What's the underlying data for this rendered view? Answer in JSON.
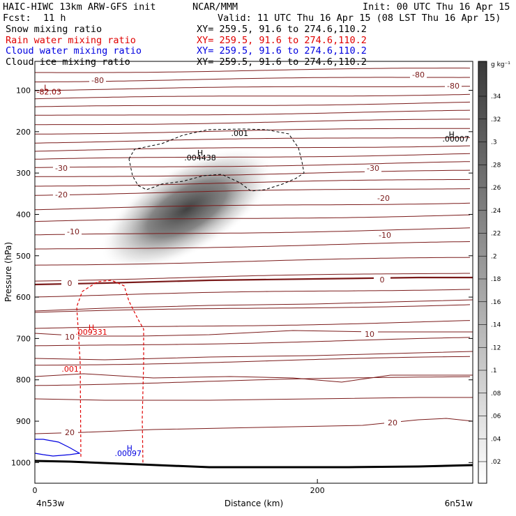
{
  "header": {
    "title_left": "HAIC-HIWC 13km ARW-GFS init",
    "title_mid": "NCAR/MMM",
    "init": "Init: 00 UTC Thu 16 Apr 15",
    "fcst_label": "Fcst:",
    "fcst_value": "11 h",
    "valid": "Valid: 11 UTC Thu 16 Apr 15 (08 LST Thu 16 Apr 15)",
    "rows": [
      {
        "name": "Snow mixing ratio",
        "xy": "XY= 259.5, 91.6 to 274.6,110.2",
        "color": "#000000"
      },
      {
        "name": "Rain water mixing ratio",
        "xy": "XY= 259.5, 91.6 to 274.6,110.2",
        "color": "#e00000"
      },
      {
        "name": "Cloud water mixing ratio",
        "xy": "XY= 259.5, 91.6 to 274.6,110.2",
        "color": "#0000e0"
      },
      {
        "name": "Cloud ice mixing ratio",
        "xy": "XY= 259.5, 91.6 to 274.6,110.2",
        "color": "#000000"
      }
    ]
  },
  "chart_data": {
    "type": "heatmap",
    "xlabel": "Distance (km)",
    "ylabel": "Pressure (hPa)",
    "xlim": [
      0,
      310
    ],
    "ylim": [
      1050,
      30
    ],
    "x_ticks": [
      0,
      200
    ],
    "y_ticks": [
      100,
      200,
      300,
      400,
      500,
      600,
      700,
      800,
      900,
      1000
    ],
    "endpoint_left": "4n53w",
    "endpoint_right": "6n51w",
    "colorbar": {
      "unit": "g kg⁻¹",
      "ticks": [
        ".02",
        ".04",
        ".06",
        ".08",
        ".1",
        ".12",
        ".14",
        ".16",
        ".18",
        ".2",
        ".22",
        ".24",
        ".26",
        ".28",
        ".3",
        ".32",
        ".34"
      ]
    },
    "snow_field": {
      "center_x": 130,
      "center_p": 340,
      "max": 0.35
    },
    "temperature_contours": [
      {
        "label": "-80",
        "p": 110
      },
      {
        "label": "-30",
        "p": 315
      },
      {
        "label": "-20",
        "p": 380
      },
      {
        "label": "-10",
        "p": 460
      },
      {
        "label": "0",
        "p": 580
      },
      {
        "label": "10",
        "p": 700
      },
      {
        "label": "20",
        "p": 920
      }
    ],
    "annotations": [
      {
        "text": "L",
        "x": 8,
        "p": 100,
        "color": "#8b0000"
      },
      {
        "text": "-82.03",
        "x": 10,
        "p": 110,
        "color": "#8b0000"
      },
      {
        "text": "H",
        "x": 117,
        "p": 258,
        "color": "#000000"
      },
      {
        "text": ".004438",
        "x": 117,
        "p": 269,
        "color": "#000000"
      },
      {
        "text": ".001",
        "x": 145,
        "p": 210,
        "color": "#000000"
      },
      {
        "text": "H",
        "x": 295,
        "p": 213,
        "color": "#000000"
      },
      {
        "text": ".00007",
        "x": 298,
        "p": 224,
        "color": "#000000"
      },
      {
        "text": "H",
        "x": 40,
        "p": 680,
        "color": "#e00000"
      },
      {
        "text": ".009331",
        "x": 40,
        "p": 691,
        "color": "#e00000"
      },
      {
        "text": ".001",
        "x": 25,
        "p": 780,
        "color": "#e00000"
      },
      {
        "text": "H",
        "x": 67,
        "p": 972,
        "color": "#0000e0"
      },
      {
        "text": ".00097",
        "x": 66,
        "p": 984,
        "color": "#0000e0"
      }
    ]
  }
}
